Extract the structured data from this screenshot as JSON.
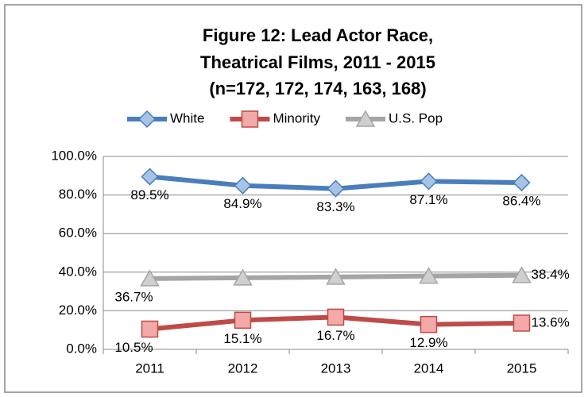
{
  "chart_data": {
    "type": "line",
    "title": [
      "Figure 12:  Lead Actor Race,",
      "Theatrical Films, 2011 - 2015",
      "(n=172, 172, 174, 163, 168)"
    ],
    "categories": [
      "2011",
      "2012",
      "2013",
      "2014",
      "2015"
    ],
    "series": [
      {
        "name": "White",
        "color": "#4a7ebb",
        "marker_color": "#a7c3e6",
        "marker": "diamond",
        "values": [
          89.5,
          84.9,
          83.3,
          87.1,
          86.4
        ],
        "value_labels": [
          "89.5%",
          "84.9%",
          "83.3%",
          "87.1%",
          "86.4%"
        ]
      },
      {
        "name": "Minority",
        "color": "#be4b48",
        "marker_color": "#f2a9a7",
        "marker": "square",
        "values": [
          10.5,
          15.1,
          16.7,
          12.9,
          13.6
        ],
        "value_labels": [
          "10.5%",
          "15.1%",
          "16.7%",
          "12.9%",
          "13.6%"
        ]
      },
      {
        "name": "U.S. Pop",
        "color": "#a5a5a5",
        "marker_color": "#cfcfcf",
        "marker": "triangle",
        "values": [
          36.7,
          37.1,
          37.5,
          38.0,
          38.4
        ],
        "value_labels": [
          "36.7%",
          null,
          null,
          null,
          "38.4%"
        ]
      }
    ],
    "ylim": [
      0,
      100
    ],
    "yticks": [
      {
        "value": 0,
        "label": "0.0%"
      },
      {
        "value": 20,
        "label": "20.0%"
      },
      {
        "value": 40,
        "label": "40.0%"
      },
      {
        "value": 60,
        "label": "60.0%"
      },
      {
        "value": 80,
        "label": "80.0%"
      },
      {
        "value": 100,
        "label": "100.0%"
      }
    ],
    "grid": true,
    "legend": "top"
  }
}
